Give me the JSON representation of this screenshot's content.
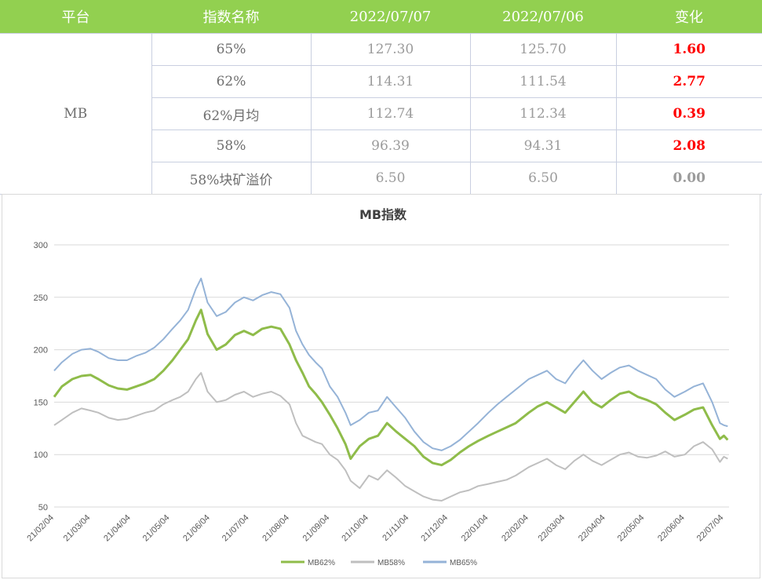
{
  "table": {
    "headers": [
      "平台",
      "指数名称",
      "2022/07/07",
      "2022/07/06",
      "变化"
    ],
    "platform": "MB",
    "rows": [
      {
        "name": "65%",
        "v1": "127.30",
        "v2": "125.70",
        "change": "1.60"
      },
      {
        "name": "62%",
        "v1": "114.31",
        "v2": "111.54",
        "change": "2.77"
      },
      {
        "name": "62%月均",
        "v1": "112.74",
        "v2": "112.34",
        "change": "0.39"
      },
      {
        "name": "58%",
        "v1": "96.39",
        "v2": "94.31",
        "change": "2.08"
      },
      {
        "name": "58%块矿溢价",
        "v1": "6.50",
        "v2": "6.50",
        "change": "0.00"
      }
    ]
  },
  "colors": {
    "header_bg": "#92d050",
    "change_positive": "#ff0000",
    "mb62": "#8fbc4a",
    "mb58": "#bfbfbf",
    "mb65": "#95b3d7"
  },
  "chart_data": {
    "type": "line",
    "title": "MB指数",
    "ylim": [
      50,
      300
    ],
    "yticks": [
      50,
      100,
      150,
      200,
      250,
      300
    ],
    "xlim": [
      "2021-02-04",
      "2022-07-08"
    ],
    "xtick_dates": [
      "2021-02-04",
      "2021-03-04",
      "2021-04-04",
      "2021-05-04",
      "2021-06-04",
      "2021-07-04",
      "2021-08-04",
      "2021-09-04",
      "2021-10-04",
      "2021-11-04",
      "2021-12-04",
      "2022-01-04",
      "2022-02-04",
      "2022-03-04",
      "2022-04-04",
      "2022-05-04",
      "2022-06-04",
      "2022-07-04"
    ],
    "xtick_labels": [
      "21/02/04",
      "21/03/04",
      "21/04/04",
      "21/05/04",
      "21/06/04",
      "21/07/04",
      "21/08/04",
      "21/09/04",
      "21/10/04",
      "21/11/04",
      "21/12/04",
      "22/01/04",
      "22/02/04",
      "22/03/04",
      "22/04/04",
      "22/05/04",
      "22/06/04",
      "22/07/04"
    ],
    "grid": true,
    "legend": "bottom",
    "series": [
      {
        "name": "MB62%",
        "color": "#8fbc4a",
        "points": [
          [
            "2021-02-04",
            155
          ],
          [
            "2021-02-10",
            165
          ],
          [
            "2021-02-18",
            172
          ],
          [
            "2021-02-25",
            175
          ],
          [
            "2021-03-04",
            176
          ],
          [
            "2021-03-10",
            172
          ],
          [
            "2021-03-18",
            166
          ],
          [
            "2021-03-25",
            163
          ],
          [
            "2021-04-01",
            162
          ],
          [
            "2021-04-08",
            165
          ],
          [
            "2021-04-15",
            168
          ],
          [
            "2021-04-22",
            172
          ],
          [
            "2021-04-29",
            180
          ],
          [
            "2021-05-06",
            190
          ],
          [
            "2021-05-12",
            200
          ],
          [
            "2021-05-18",
            210
          ],
          [
            "2021-05-24",
            228
          ],
          [
            "2021-05-28",
            238
          ],
          [
            "2021-06-02",
            215
          ],
          [
            "2021-06-09",
            200
          ],
          [
            "2021-06-16",
            205
          ],
          [
            "2021-06-23",
            214
          ],
          [
            "2021-06-30",
            218
          ],
          [
            "2021-07-07",
            214
          ],
          [
            "2021-07-14",
            220
          ],
          [
            "2021-07-21",
            222
          ],
          [
            "2021-07-28",
            220
          ],
          [
            "2021-08-04",
            205
          ],
          [
            "2021-08-09",
            190
          ],
          [
            "2021-08-14",
            178
          ],
          [
            "2021-08-19",
            165
          ],
          [
            "2021-08-24",
            158
          ],
          [
            "2021-08-29",
            150
          ],
          [
            "2021-09-04",
            138
          ],
          [
            "2021-09-10",
            125
          ],
          [
            "2021-09-16",
            110
          ],
          [
            "2021-09-20",
            96
          ],
          [
            "2021-09-27",
            108
          ],
          [
            "2021-10-04",
            115
          ],
          [
            "2021-10-11",
            118
          ],
          [
            "2021-10-18",
            130
          ],
          [
            "2021-10-25",
            122
          ],
          [
            "2021-11-01",
            115
          ],
          [
            "2021-11-08",
            108
          ],
          [
            "2021-11-15",
            98
          ],
          [
            "2021-11-22",
            92
          ],
          [
            "2021-11-29",
            90
          ],
          [
            "2021-12-06",
            95
          ],
          [
            "2021-12-13",
            102
          ],
          [
            "2021-12-20",
            108
          ],
          [
            "2021-12-27",
            113
          ],
          [
            "2022-01-04",
            118
          ],
          [
            "2022-01-11",
            122
          ],
          [
            "2022-01-18",
            126
          ],
          [
            "2022-01-25",
            130
          ],
          [
            "2022-02-04",
            140
          ],
          [
            "2022-02-11",
            146
          ],
          [
            "2022-02-18",
            150
          ],
          [
            "2022-02-25",
            145
          ],
          [
            "2022-03-04",
            140
          ],
          [
            "2022-03-11",
            150
          ],
          [
            "2022-03-18",
            160
          ],
          [
            "2022-03-25",
            150
          ],
          [
            "2022-04-01",
            145
          ],
          [
            "2022-04-08",
            152
          ],
          [
            "2022-04-15",
            158
          ],
          [
            "2022-04-22",
            160
          ],
          [
            "2022-04-29",
            155
          ],
          [
            "2022-05-06",
            152
          ],
          [
            "2022-05-13",
            148
          ],
          [
            "2022-05-20",
            140
          ],
          [
            "2022-05-27",
            133
          ],
          [
            "2022-06-04",
            138
          ],
          [
            "2022-06-11",
            143
          ],
          [
            "2022-06-18",
            145
          ],
          [
            "2022-06-25",
            128
          ],
          [
            "2022-07-01",
            115
          ],
          [
            "2022-07-04",
            118
          ],
          [
            "2022-07-07",
            114
          ]
        ]
      },
      {
        "name": "MB58%",
        "color": "#bfbfbf",
        "points": [
          [
            "2021-02-04",
            128
          ],
          [
            "2021-02-10",
            133
          ],
          [
            "2021-02-18",
            140
          ],
          [
            "2021-02-25",
            144
          ],
          [
            "2021-03-04",
            142
          ],
          [
            "2021-03-10",
            140
          ],
          [
            "2021-03-18",
            135
          ],
          [
            "2021-03-25",
            133
          ],
          [
            "2021-04-01",
            134
          ],
          [
            "2021-04-08",
            137
          ],
          [
            "2021-04-15",
            140
          ],
          [
            "2021-04-22",
            142
          ],
          [
            "2021-04-29",
            148
          ],
          [
            "2021-05-06",
            152
          ],
          [
            "2021-05-12",
            155
          ],
          [
            "2021-05-18",
            160
          ],
          [
            "2021-05-24",
            172
          ],
          [
            "2021-05-28",
            178
          ],
          [
            "2021-06-02",
            160
          ],
          [
            "2021-06-09",
            150
          ],
          [
            "2021-06-16",
            152
          ],
          [
            "2021-06-23",
            157
          ],
          [
            "2021-06-30",
            160
          ],
          [
            "2021-07-07",
            155
          ],
          [
            "2021-07-14",
            158
          ],
          [
            "2021-07-21",
            160
          ],
          [
            "2021-07-28",
            156
          ],
          [
            "2021-08-04",
            148
          ],
          [
            "2021-08-09",
            130
          ],
          [
            "2021-08-14",
            118
          ],
          [
            "2021-08-19",
            115
          ],
          [
            "2021-08-24",
            112
          ],
          [
            "2021-08-29",
            110
          ],
          [
            "2021-09-04",
            100
          ],
          [
            "2021-09-10",
            95
          ],
          [
            "2021-09-16",
            85
          ],
          [
            "2021-09-20",
            75
          ],
          [
            "2021-09-27",
            68
          ],
          [
            "2021-10-04",
            80
          ],
          [
            "2021-10-11",
            76
          ],
          [
            "2021-10-18",
            85
          ],
          [
            "2021-10-25",
            78
          ],
          [
            "2021-11-01",
            70
          ],
          [
            "2021-11-08",
            65
          ],
          [
            "2021-11-15",
            60
          ],
          [
            "2021-11-22",
            57
          ],
          [
            "2021-11-29",
            56
          ],
          [
            "2021-12-06",
            60
          ],
          [
            "2021-12-13",
            64
          ],
          [
            "2021-12-20",
            66
          ],
          [
            "2021-12-27",
            70
          ],
          [
            "2022-01-04",
            72
          ],
          [
            "2022-01-11",
            74
          ],
          [
            "2022-01-18",
            76
          ],
          [
            "2022-01-25",
            80
          ],
          [
            "2022-02-04",
            88
          ],
          [
            "2022-02-11",
            92
          ],
          [
            "2022-02-18",
            96
          ],
          [
            "2022-02-25",
            90
          ],
          [
            "2022-03-04",
            86
          ],
          [
            "2022-03-11",
            94
          ],
          [
            "2022-03-18",
            100
          ],
          [
            "2022-03-25",
            94
          ],
          [
            "2022-04-01",
            90
          ],
          [
            "2022-04-08",
            95
          ],
          [
            "2022-04-15",
            100
          ],
          [
            "2022-04-22",
            102
          ],
          [
            "2022-04-29",
            98
          ],
          [
            "2022-05-06",
            97
          ],
          [
            "2022-05-13",
            99
          ],
          [
            "2022-05-20",
            103
          ],
          [
            "2022-05-27",
            98
          ],
          [
            "2022-06-04",
            100
          ],
          [
            "2022-06-11",
            108
          ],
          [
            "2022-06-18",
            112
          ],
          [
            "2022-06-25",
            105
          ],
          [
            "2022-07-01",
            93
          ],
          [
            "2022-07-04",
            98
          ],
          [
            "2022-07-07",
            96
          ]
        ]
      },
      {
        "name": "MB65%",
        "color": "#95b3d7",
        "points": [
          [
            "2021-02-04",
            180
          ],
          [
            "2021-02-10",
            188
          ],
          [
            "2021-02-18",
            196
          ],
          [
            "2021-02-25",
            200
          ],
          [
            "2021-03-04",
            201
          ],
          [
            "2021-03-10",
            198
          ],
          [
            "2021-03-18",
            192
          ],
          [
            "2021-03-25",
            190
          ],
          [
            "2021-04-01",
            190
          ],
          [
            "2021-04-08",
            194
          ],
          [
            "2021-04-15",
            197
          ],
          [
            "2021-04-22",
            202
          ],
          [
            "2021-04-29",
            210
          ],
          [
            "2021-05-06",
            220
          ],
          [
            "2021-05-12",
            228
          ],
          [
            "2021-05-18",
            238
          ],
          [
            "2021-05-24",
            258
          ],
          [
            "2021-05-28",
            268
          ],
          [
            "2021-06-02",
            245
          ],
          [
            "2021-06-09",
            232
          ],
          [
            "2021-06-16",
            236
          ],
          [
            "2021-06-23",
            245
          ],
          [
            "2021-06-30",
            250
          ],
          [
            "2021-07-07",
            247
          ],
          [
            "2021-07-14",
            252
          ],
          [
            "2021-07-21",
            255
          ],
          [
            "2021-07-28",
            253
          ],
          [
            "2021-08-04",
            240
          ],
          [
            "2021-08-09",
            218
          ],
          [
            "2021-08-14",
            205
          ],
          [
            "2021-08-19",
            195
          ],
          [
            "2021-08-24",
            188
          ],
          [
            "2021-08-29",
            182
          ],
          [
            "2021-09-04",
            165
          ],
          [
            "2021-09-10",
            155
          ],
          [
            "2021-09-16",
            140
          ],
          [
            "2021-09-20",
            128
          ],
          [
            "2021-09-27",
            133
          ],
          [
            "2021-10-04",
            140
          ],
          [
            "2021-10-11",
            142
          ],
          [
            "2021-10-18",
            155
          ],
          [
            "2021-10-25",
            145
          ],
          [
            "2021-11-01",
            135
          ],
          [
            "2021-11-08",
            122
          ],
          [
            "2021-11-15",
            112
          ],
          [
            "2021-11-22",
            106
          ],
          [
            "2021-11-29",
            104
          ],
          [
            "2021-12-06",
            108
          ],
          [
            "2021-12-13",
            114
          ],
          [
            "2021-12-20",
            122
          ],
          [
            "2021-12-27",
            130
          ],
          [
            "2022-01-04",
            140
          ],
          [
            "2022-01-11",
            148
          ],
          [
            "2022-01-18",
            155
          ],
          [
            "2022-01-25",
            162
          ],
          [
            "2022-02-04",
            172
          ],
          [
            "2022-02-11",
            176
          ],
          [
            "2022-02-18",
            180
          ],
          [
            "2022-02-25",
            172
          ],
          [
            "2022-03-04",
            168
          ],
          [
            "2022-03-11",
            180
          ],
          [
            "2022-03-18",
            190
          ],
          [
            "2022-03-25",
            180
          ],
          [
            "2022-04-01",
            172
          ],
          [
            "2022-04-08",
            178
          ],
          [
            "2022-04-15",
            183
          ],
          [
            "2022-04-22",
            185
          ],
          [
            "2022-04-29",
            180
          ],
          [
            "2022-05-06",
            176
          ],
          [
            "2022-05-13",
            172
          ],
          [
            "2022-05-20",
            162
          ],
          [
            "2022-05-27",
            155
          ],
          [
            "2022-06-04",
            160
          ],
          [
            "2022-06-11",
            165
          ],
          [
            "2022-06-18",
            168
          ],
          [
            "2022-06-25",
            150
          ],
          [
            "2022-07-01",
            130
          ],
          [
            "2022-07-04",
            128
          ],
          [
            "2022-07-07",
            127
          ]
        ]
      }
    ]
  }
}
